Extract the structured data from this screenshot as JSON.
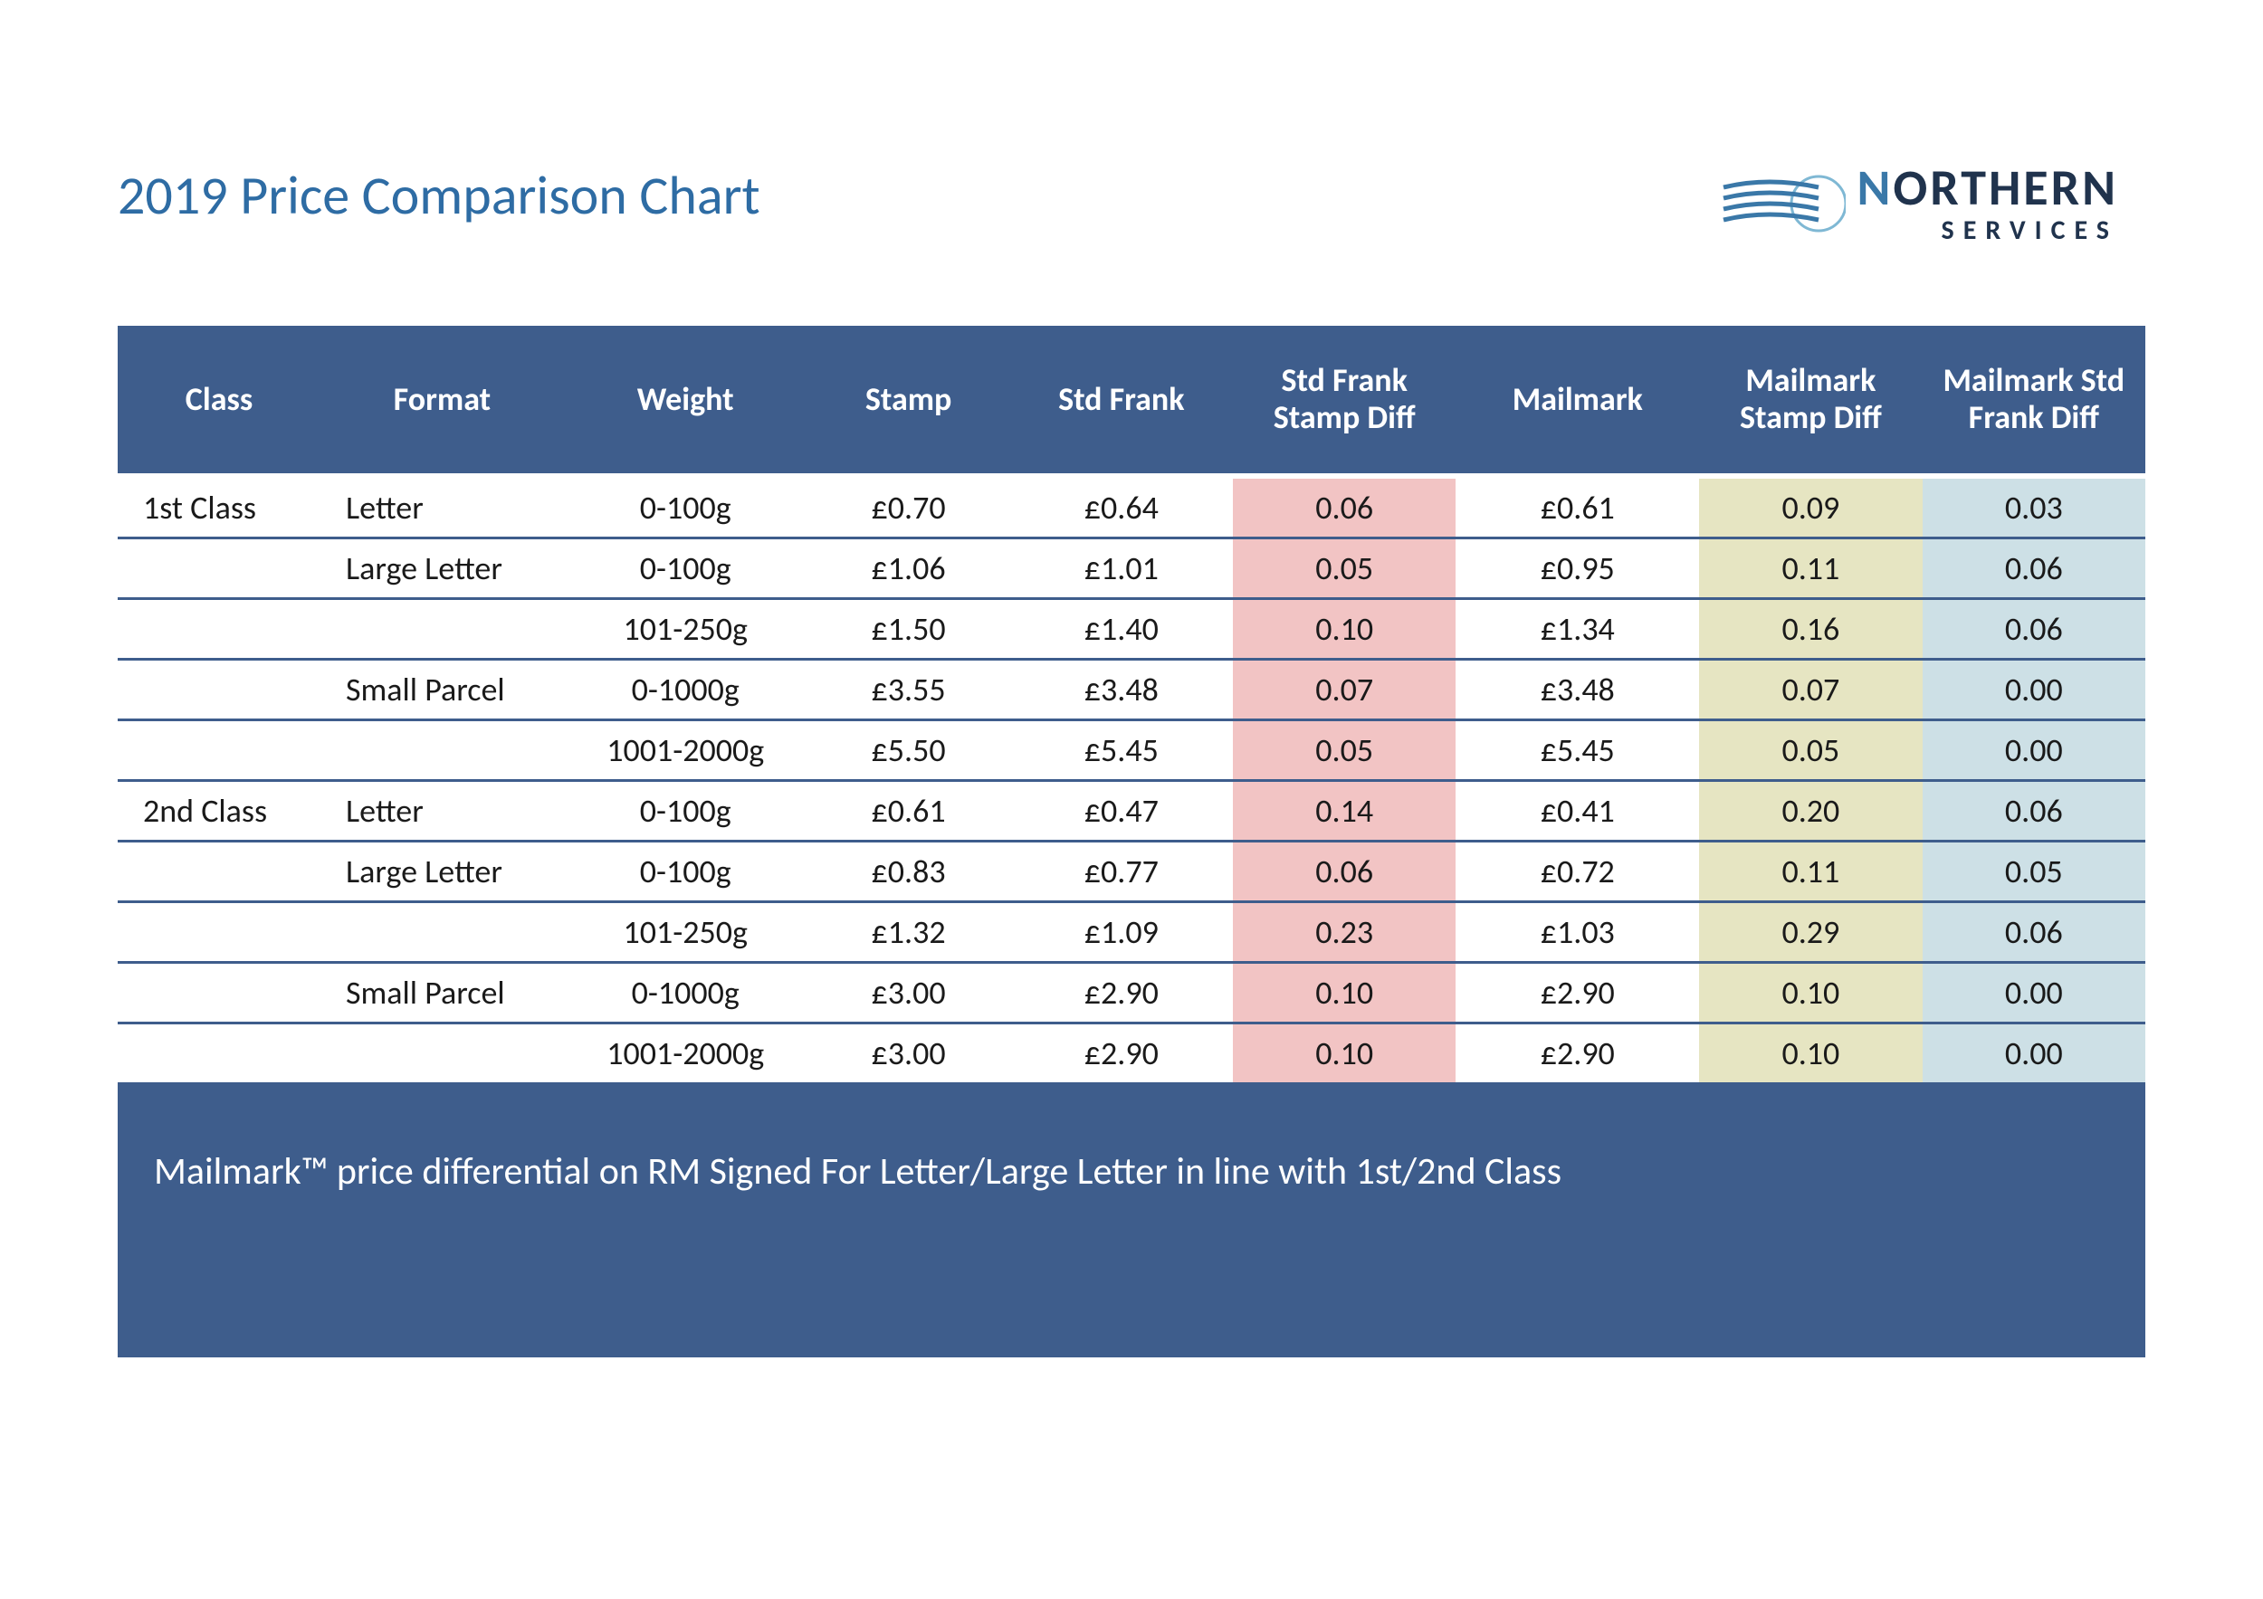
{
  "title": "2019 Price Comparison Chart",
  "logo": {
    "main_prefix": "N",
    "main_rest": "ORTHERN",
    "sub": "SERVICES",
    "wave_color": "#3a78a8",
    "circle_color": "#7fb8d4",
    "text_color": "#20334d"
  },
  "colors": {
    "header_bg": "#3e5d8c",
    "header_fg": "#ffffff",
    "row_border": "#3e5d8c",
    "hl_pink": "#f2c4c4",
    "hl_olive": "#e6e5c2",
    "hl_blue": "#cde0e6",
    "title_color": "#2e6ca4",
    "body_text": "#1a1a1a"
  },
  "table": {
    "columns": [
      "Class",
      "Format",
      "Weight",
      "Stamp",
      "Std Frank",
      "Std Frank Stamp Diff",
      "Mailmark",
      "Mailmark Stamp Diff",
      "Mailmark Std Frank Diff"
    ],
    "column_highlight": [
      null,
      null,
      null,
      null,
      null,
      "pink",
      null,
      "olive",
      "blue"
    ],
    "rows": [
      {
        "class": "1st Class",
        "format": "Letter",
        "weight": "0-100g",
        "stamp": "£0.70",
        "frank": "£0.64",
        "d1": "0.06",
        "mail": "£0.61",
        "d2": "0.09",
        "d3": "0.03"
      },
      {
        "class": "",
        "format": "Large Letter",
        "weight": "0-100g",
        "stamp": "£1.06",
        "frank": "£1.01",
        "d1": "0.05",
        "mail": "£0.95",
        "d2": "0.11",
        "d3": "0.06"
      },
      {
        "class": "",
        "format": "",
        "weight": "101-250g",
        "stamp": "£1.50",
        "frank": "£1.40",
        "d1": "0.10",
        "mail": "£1.34",
        "d2": "0.16",
        "d3": "0.06"
      },
      {
        "class": "",
        "format": "Small Parcel",
        "weight": "0-1000g",
        "stamp": "£3.55",
        "frank": "£3.48",
        "d1": "0.07",
        "mail": "£3.48",
        "d2": "0.07",
        "d3": "0.00"
      },
      {
        "class": "",
        "format": "",
        "weight": "1001-2000g",
        "stamp": "£5.50",
        "frank": "£5.45",
        "d1": "0.05",
        "mail": "£5.45",
        "d2": "0.05",
        "d3": "0.00"
      },
      {
        "class": "2nd Class",
        "format": "Letter",
        "weight": "0-100g",
        "stamp": "£0.61",
        "frank": "£0.47",
        "d1": "0.14",
        "mail": "£0.41",
        "d2": "0.20",
        "d3": "0.06"
      },
      {
        "class": "",
        "format": "Large Letter",
        "weight": "0-100g",
        "stamp": "£0.83",
        "frank": "£0.77",
        "d1": "0.06",
        "mail": "£0.72",
        "d2": "0.11",
        "d3": "0.05"
      },
      {
        "class": "",
        "format": "",
        "weight": "101-250g",
        "stamp": "£1.32",
        "frank": "£1.09",
        "d1": "0.23",
        "mail": "£1.03",
        "d2": "0.29",
        "d3": "0.06"
      },
      {
        "class": "",
        "format": "Small Parcel",
        "weight": "0-1000g",
        "stamp": "£3.00",
        "frank": "£2.90",
        "d1": "0.10",
        "mail": "£2.90",
        "d2": "0.10",
        "d3": "0.00"
      },
      {
        "class": "",
        "format": "",
        "weight": "1001-2000g",
        "stamp": "£3.00",
        "frank": "£2.90",
        "d1": "0.10",
        "mail": "£2.90",
        "d2": "0.10",
        "d3": "0.00"
      }
    ]
  },
  "footer_note": "Mailmark™ price differential on RM Signed For Letter/Large Letter in line with 1st/2nd Class"
}
